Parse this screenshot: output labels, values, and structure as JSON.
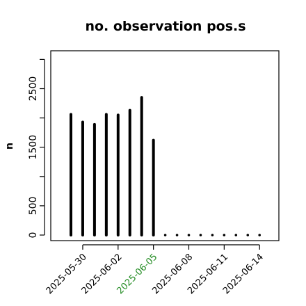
{
  "chart_data": {
    "type": "bar",
    "title": "no. observation pos.s",
    "xlabel": "",
    "ylabel": "n",
    "x": [
      "2025-05-29",
      "2025-05-30",
      "2025-05-31",
      "2025-06-01",
      "2025-06-02",
      "2025-06-03",
      "2025-06-04",
      "2025-06-05",
      "2025-06-06",
      "2025-06-07",
      "2025-06-08",
      "2025-06-09",
      "2025-06-10",
      "2025-06-11",
      "2025-06-12",
      "2025-06-13",
      "2025-06-14"
    ],
    "values": [
      2060,
      1930,
      1890,
      2060,
      2050,
      2130,
      2350,
      1620,
      0,
      0,
      0,
      0,
      0,
      0,
      0,
      0,
      0
    ],
    "ylim": [
      0,
      3000
    ],
    "yticks": [
      "0",
      "500",
      "1500",
      "2500"
    ],
    "yticks_minor": [
      1000,
      2000,
      3000
    ],
    "xticks": [
      {
        "label": "2025-05-30",
        "color": "#000000"
      },
      {
        "label": "2025-06-02",
        "color": "#000000"
      },
      {
        "label": "2025-06-05",
        "color": "#228B22"
      },
      {
        "label": "2025-06-08",
        "color": "#000000"
      },
      {
        "label": "2025-06-11",
        "color": "#000000"
      },
      {
        "label": "2025-06-14",
        "color": "#000000"
      }
    ],
    "bar_color": "#000000",
    "grid": false
  }
}
